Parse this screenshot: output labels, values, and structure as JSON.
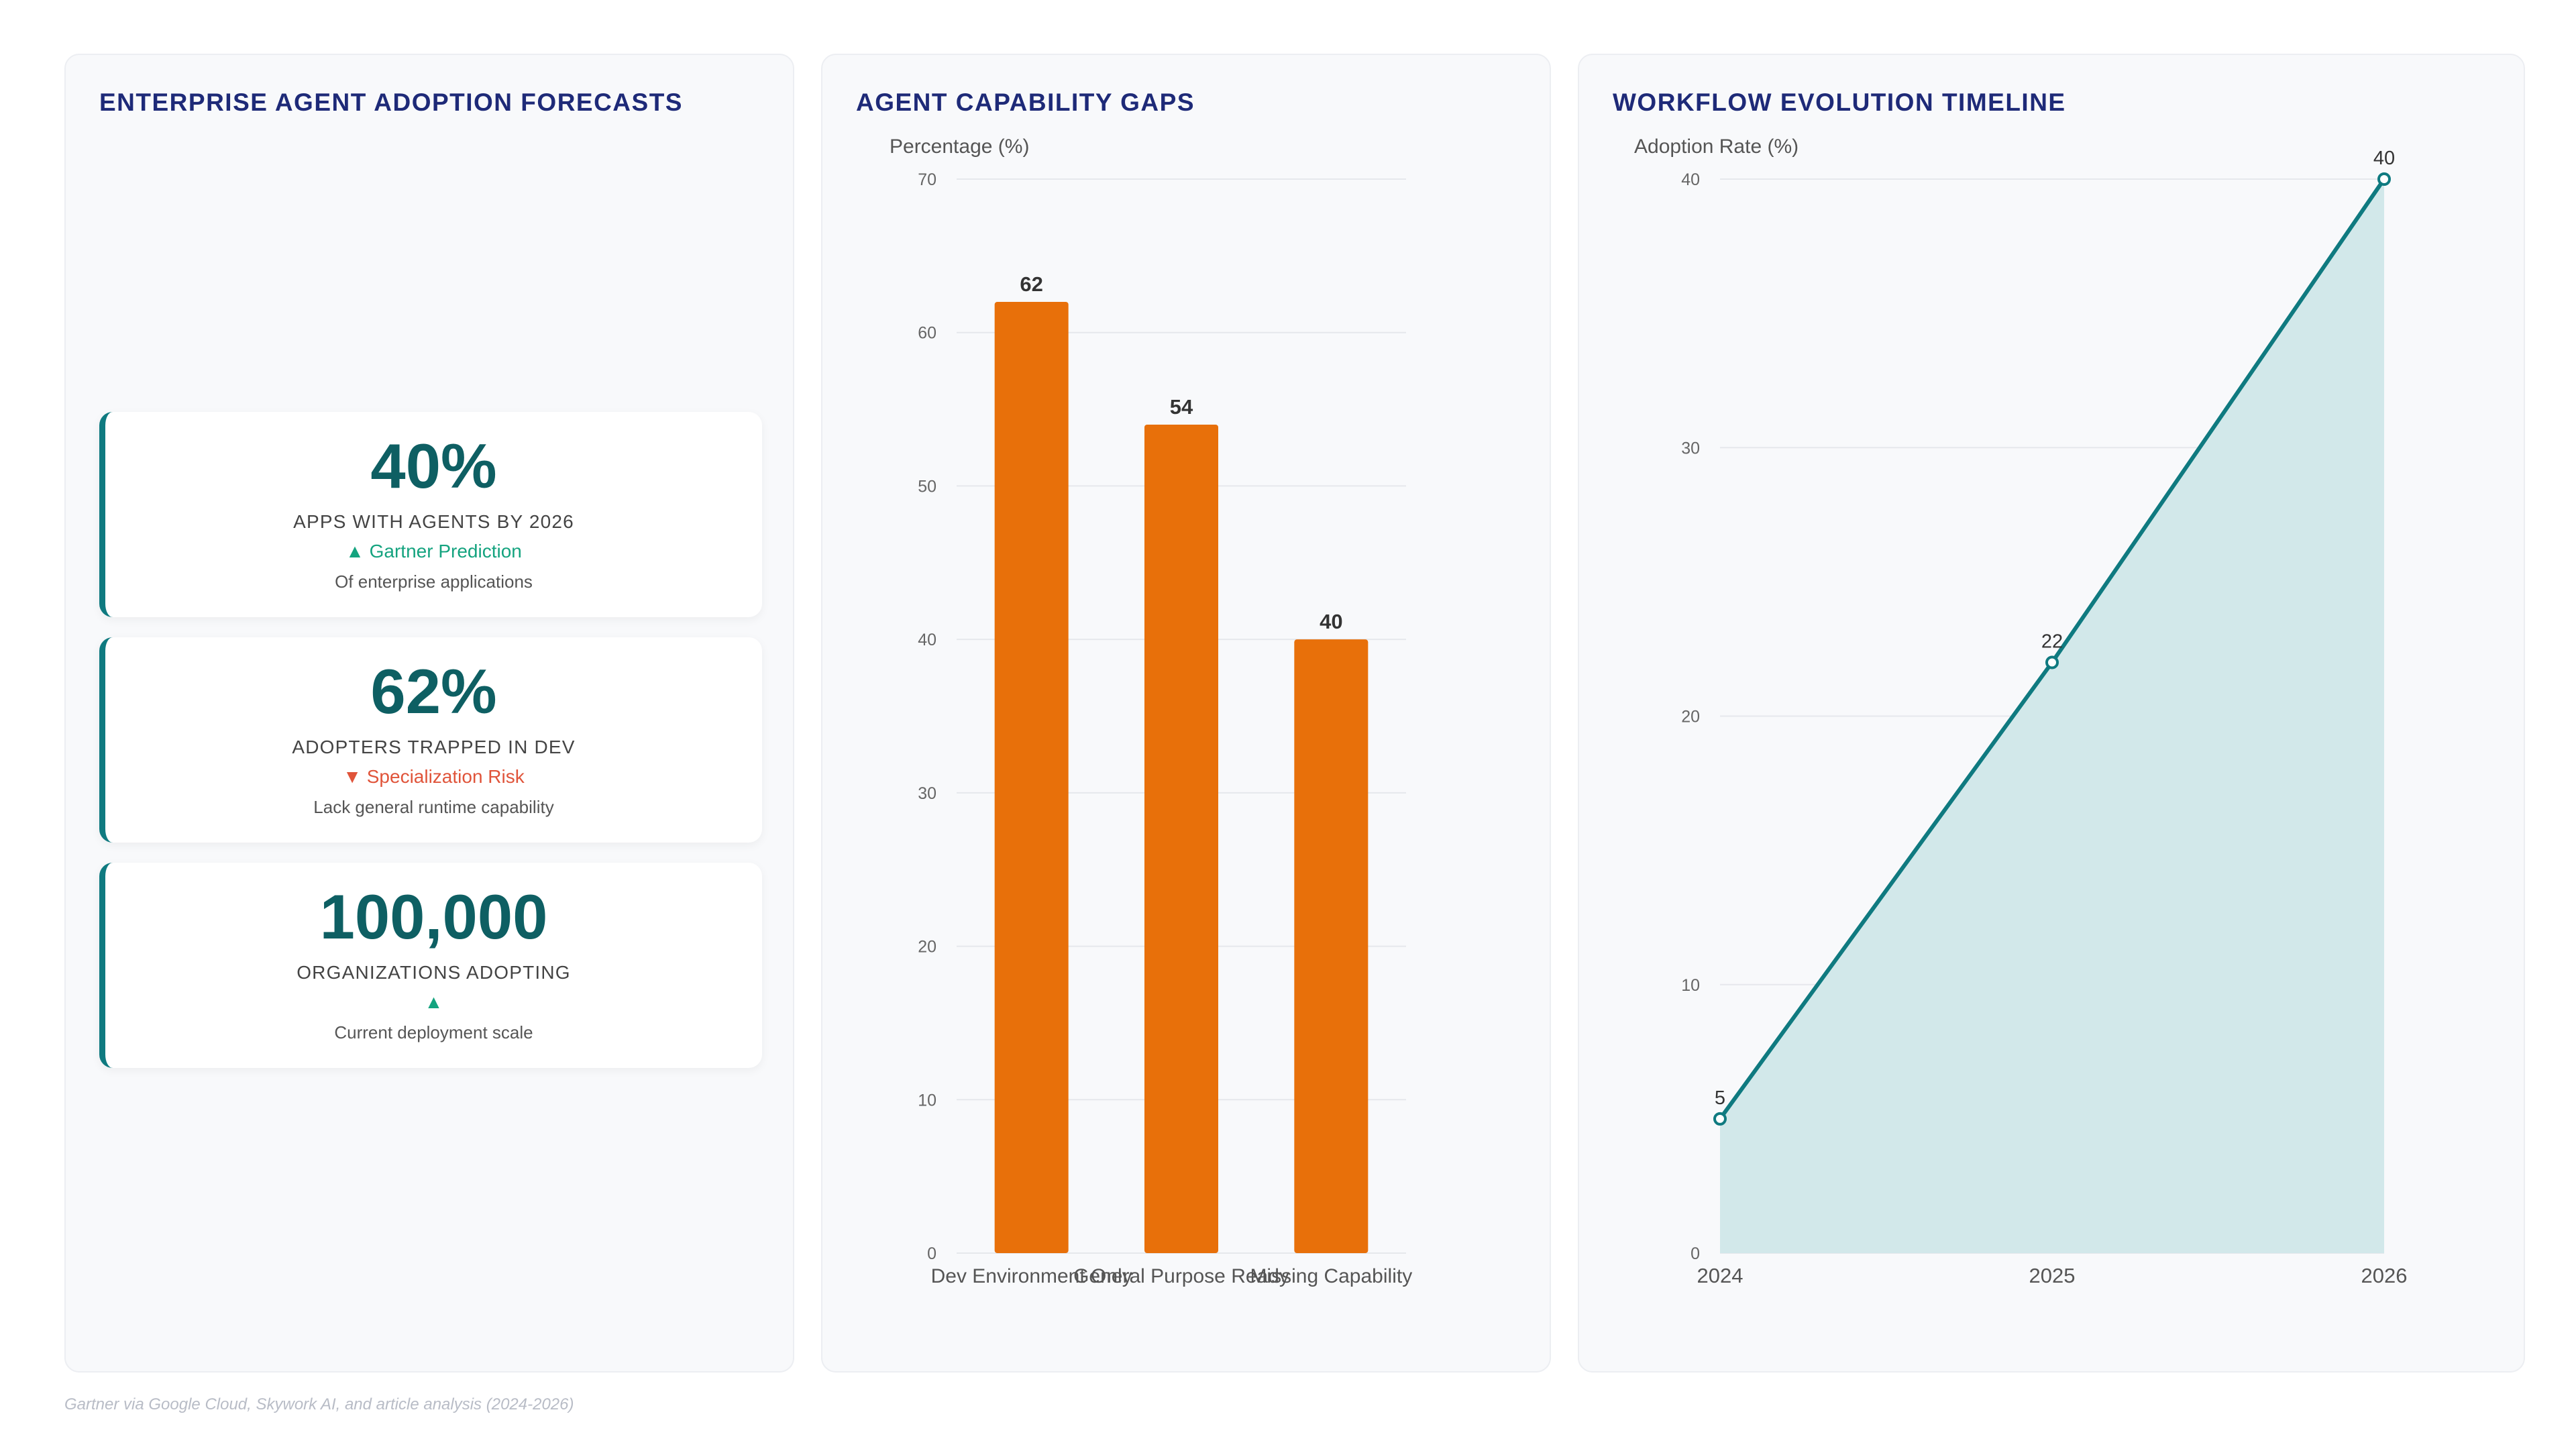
{
  "kpi_panel": {
    "title": "ENTERPRISE AGENT ADOPTION FORECASTS",
    "cards": [
      {
        "value": "40%",
        "label": "APPS WITH AGENTS BY 2026",
        "trend": "▲ Gartner Prediction",
        "trend_dir": "up",
        "note": "Of enterprise applications"
      },
      {
        "value": "62%",
        "label": "ADOPTERS TRAPPED IN DEV",
        "trend": "▼ Specialization Risk",
        "trend_dir": "down",
        "note": "Lack general runtime capability"
      },
      {
        "value": "100,000",
        "label": "ORGANIZATIONS ADOPTING",
        "trend": "▲",
        "trend_dir": "up",
        "note": "Current deployment scale"
      }
    ]
  },
  "chart_data": [
    {
      "type": "bar",
      "title": "AGENT CAPABILITY GAPS",
      "ylabel": "Percentage (%)",
      "xlabel": "",
      "categories": [
        "Dev Environment Only",
        "General Purpose Ready",
        "Missing Capability"
      ],
      "values": [
        62,
        54,
        40
      ],
      "ylim": [
        0,
        70
      ],
      "yticks": [
        0,
        10,
        20,
        30,
        40,
        50,
        60,
        70
      ],
      "grid": true,
      "color": "#e8700a"
    },
    {
      "type": "area",
      "title": "WORKFLOW EVOLUTION TIMELINE",
      "ylabel": "Adoption Rate (%)",
      "xlabel": "",
      "x": [
        "2024",
        "2025",
        "2026"
      ],
      "values": [
        5,
        22,
        40
      ],
      "ylim": [
        0,
        40
      ],
      "yticks": [
        0,
        10,
        20,
        30,
        40
      ],
      "grid": true,
      "line_color": "#0f7a80",
      "fill_color": "#d2e8ea"
    }
  ],
  "footer": "Gartner via Google Cloud, Skywork AI, and article analysis (2024-2026)"
}
